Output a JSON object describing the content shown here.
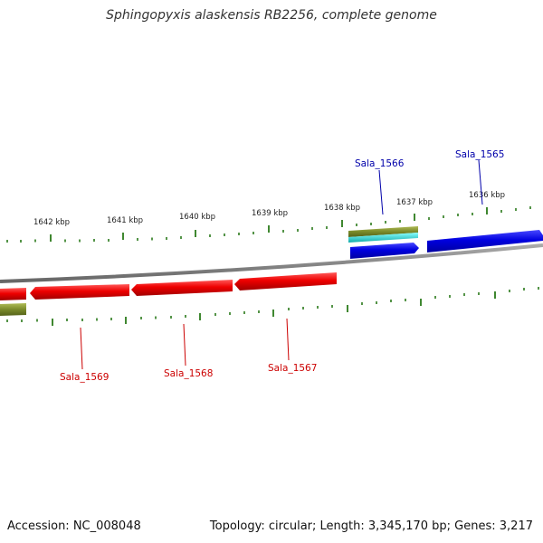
{
  "title": "Sphingopyxis alaskensis RB2256, complete genome",
  "footer": {
    "accession": "Accession: NC_008048",
    "summary": "Topology: circular; Length: 3,345,170 bp; Genes: 3,217"
  },
  "ticks": [
    "1642 kbp",
    "1641 kbp",
    "1640 kbp",
    "1639 kbp",
    "1638 kbp",
    "1637 kbp",
    "1636 kbp"
  ],
  "genes": {
    "forward": [
      "Sala_1565",
      "Sala_1566"
    ],
    "reverse": [
      "Sala_1567",
      "Sala_1568",
      "Sala_1569"
    ]
  },
  "colors": {
    "forward_gene": "#0000dd",
    "reverse_gene": "#ee0000",
    "tick": "#2a7a1a",
    "backbone": "#888888",
    "olive_feature": "#7a8a2a",
    "cyan_feature": "#22cccc"
  }
}
